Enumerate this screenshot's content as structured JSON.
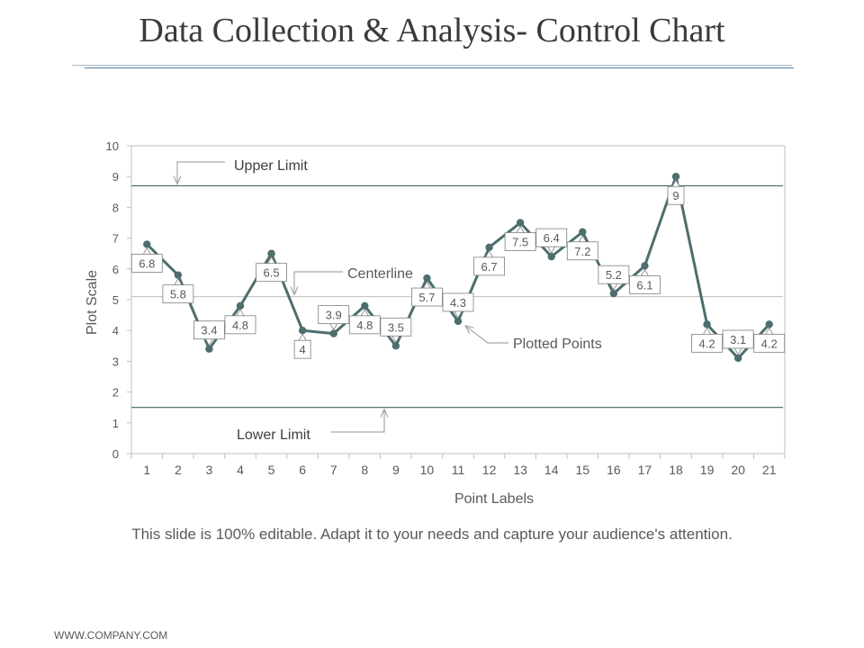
{
  "slide": {
    "title": "Data Collection & Analysis- Control Chart",
    "caption": "This slide is 100% editable. Adapt it to your needs and capture your audience's attention.",
    "footer": "WWW.COMPANY.COM"
  },
  "chart_data": {
    "type": "line",
    "title": "",
    "xlabel": "Point Labels",
    "ylabel": "Plot  Scale",
    "ylim": [
      0,
      10
    ],
    "y_ticks": [
      0,
      1,
      2,
      3,
      4,
      5,
      6,
      7,
      8,
      9,
      10
    ],
    "categories": [
      "1",
      "2",
      "3",
      "4",
      "5",
      "6",
      "7",
      "8",
      "9",
      "10",
      "11",
      "12",
      "13",
      "14",
      "15",
      "16",
      "17",
      "18",
      "19",
      "20",
      "21"
    ],
    "series": [
      {
        "name": "Plotted Points",
        "values": [
          6.8,
          5.8,
          3.4,
          4.8,
          6.5,
          4,
          3.9,
          4.8,
          3.5,
          5.7,
          4.3,
          6.7,
          7.5,
          6.4,
          7.2,
          5.2,
          6.1,
          9,
          4.2,
          3.1,
          4.2
        ],
        "labels": [
          "6.8",
          "5.8",
          "3.4",
          "4.8",
          "6.5",
          "4",
          "3.9",
          "4.8",
          "3.5",
          "5.7",
          "4.3",
          "6.7",
          "7.5",
          "6.4",
          "7.2",
          "5.2",
          "6.1",
          "9",
          "4.2",
          "3.1",
          "4.2"
        ]
      }
    ],
    "reference_lines": {
      "upper_limit": 8.7,
      "centerline": 5.1,
      "lower_limit": 1.5
    },
    "annotations": {
      "upper_limit": "Upper Limit",
      "centerline": "Centerline",
      "lower_limit": "Lower Limit",
      "plotted_points": "Plotted Points"
    },
    "grid": false,
    "colors": {
      "series": "#4d6e6e",
      "limit_line": "#3f6a6a",
      "centerline": "#bfbfbf",
      "axis": "#bfbfbf",
      "text": "#595959",
      "label_border": "#7f7f7f",
      "arrow": "#a6a6a6"
    }
  }
}
